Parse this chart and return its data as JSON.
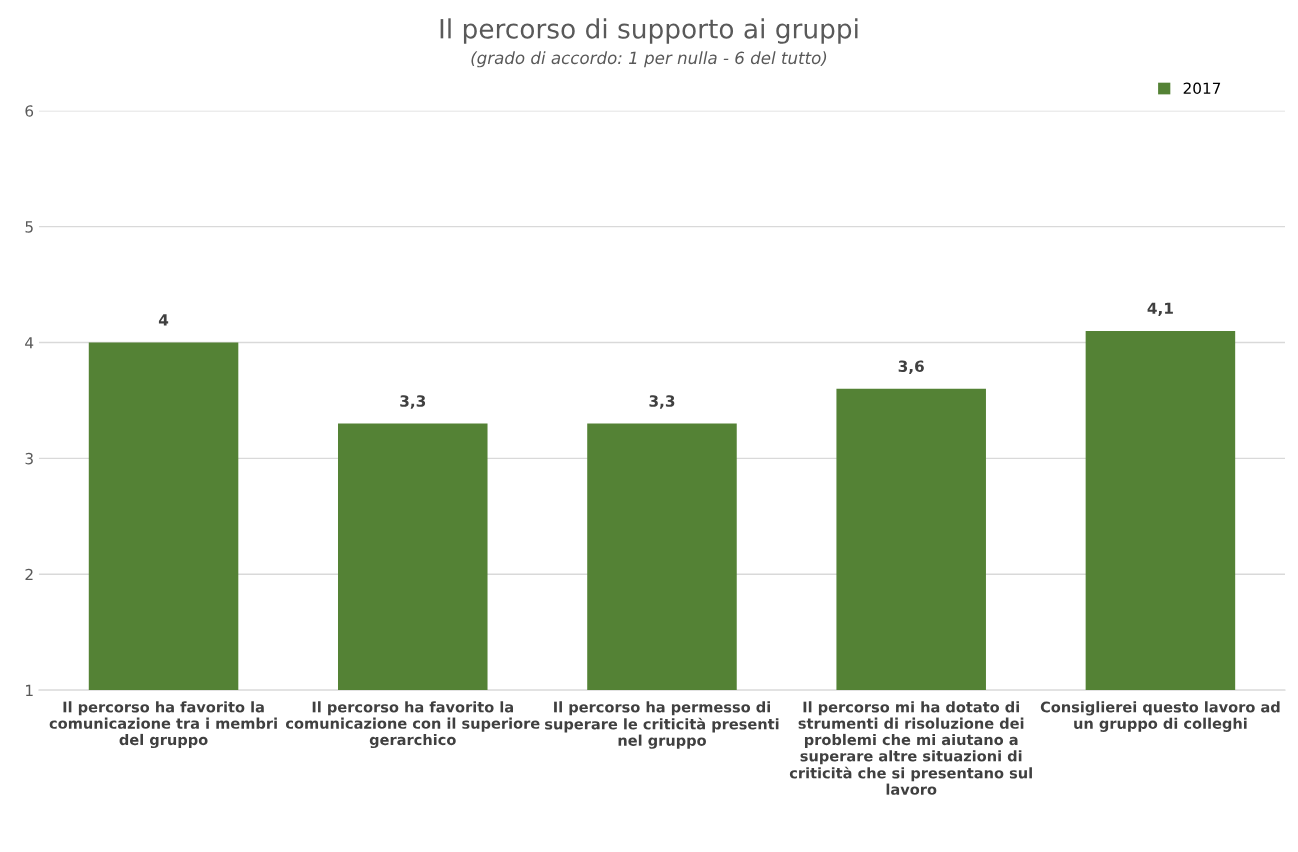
{
  "chart_data": {
    "type": "bar",
    "title": "Il percorso di supporto ai gruppi",
    "subtitle": "(grado di accordo: 1 per nulla - 6 del tutto)",
    "categories": [
      "Il percorso ha favorito la\ncomunicazione tra i membri\ndel gruppo",
      "Il percorso ha favorito la\ncomunicazione con il superiore\ngerarchico",
      "Il percorso ha permesso di\nsuperare le criticità presenti\nnel gruppo",
      "Il percorso mi ha dotato di\nstrumenti di risoluzione dei\nproblemi che mi aiutano a\nsuperare altre situazioni di\ncriticità che si presentano sul\nlavoro",
      "Consiglierei questo lavoro ad\nun gruppo di colleghi"
    ],
    "series": [
      {
        "name": "2017",
        "color": "#548235",
        "values": [
          4,
          3.3,
          3.3,
          3.6,
          4.1
        ],
        "value_labels": [
          "4",
          "3,3",
          "3,3",
          "3,6",
          "4,1"
        ]
      }
    ],
    "ylim": [
      1,
      6
    ],
    "yticks": [
      1,
      2,
      3,
      4,
      5,
      6
    ],
    "grid": "y",
    "legend": "top right"
  }
}
